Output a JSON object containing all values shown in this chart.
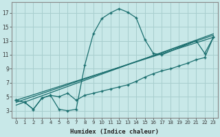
{
  "xlabel": "Humidex (Indice chaleur)",
  "background_color": "#c8e8e8",
  "grid_color": "#a8cece",
  "line_color": "#1a6e6e",
  "xlim": [
    -0.5,
    23.5
  ],
  "ylim": [
    2,
    18.5
  ],
  "ytick_values": [
    3,
    5,
    7,
    9,
    11,
    13,
    15,
    17
  ],
  "curve1_x": [
    0,
    1,
    2,
    3,
    4,
    5,
    6,
    7,
    8,
    9,
    10,
    11,
    12,
    13,
    14,
    15,
    16,
    17,
    21,
    22,
    23
  ],
  "curve1_y": [
    4.5,
    4.2,
    3.2,
    4.8,
    5.2,
    3.2,
    3.0,
    3.2,
    9.5,
    14.0,
    16.2,
    17.0,
    17.6,
    17.1,
    16.3,
    13.2,
    11.2,
    11.0,
    13.0,
    11.2,
    13.5
  ],
  "curve2_x": [
    0,
    1,
    2,
    3,
    4,
    5,
    6,
    7,
    8,
    9,
    10,
    11,
    12,
    13,
    14,
    15,
    16,
    17,
    18,
    19,
    20,
    21,
    22,
    23
  ],
  "curve2_y": [
    4.5,
    4.2,
    3.2,
    4.8,
    5.2,
    5.0,
    5.5,
    4.5,
    5.2,
    5.5,
    5.8,
    6.1,
    6.4,
    6.7,
    7.2,
    7.8,
    8.3,
    8.7,
    9.0,
    9.4,
    9.8,
    10.3,
    10.6,
    13.5
  ],
  "line1_x": [
    0,
    23
  ],
  "line1_y": [
    4.5,
    13.5
  ],
  "line2_x": [
    0,
    23
  ],
  "line2_y": [
    4.2,
    13.8
  ],
  "line3_x": [
    0,
    23
  ],
  "line3_y": [
    3.8,
    14.0
  ]
}
